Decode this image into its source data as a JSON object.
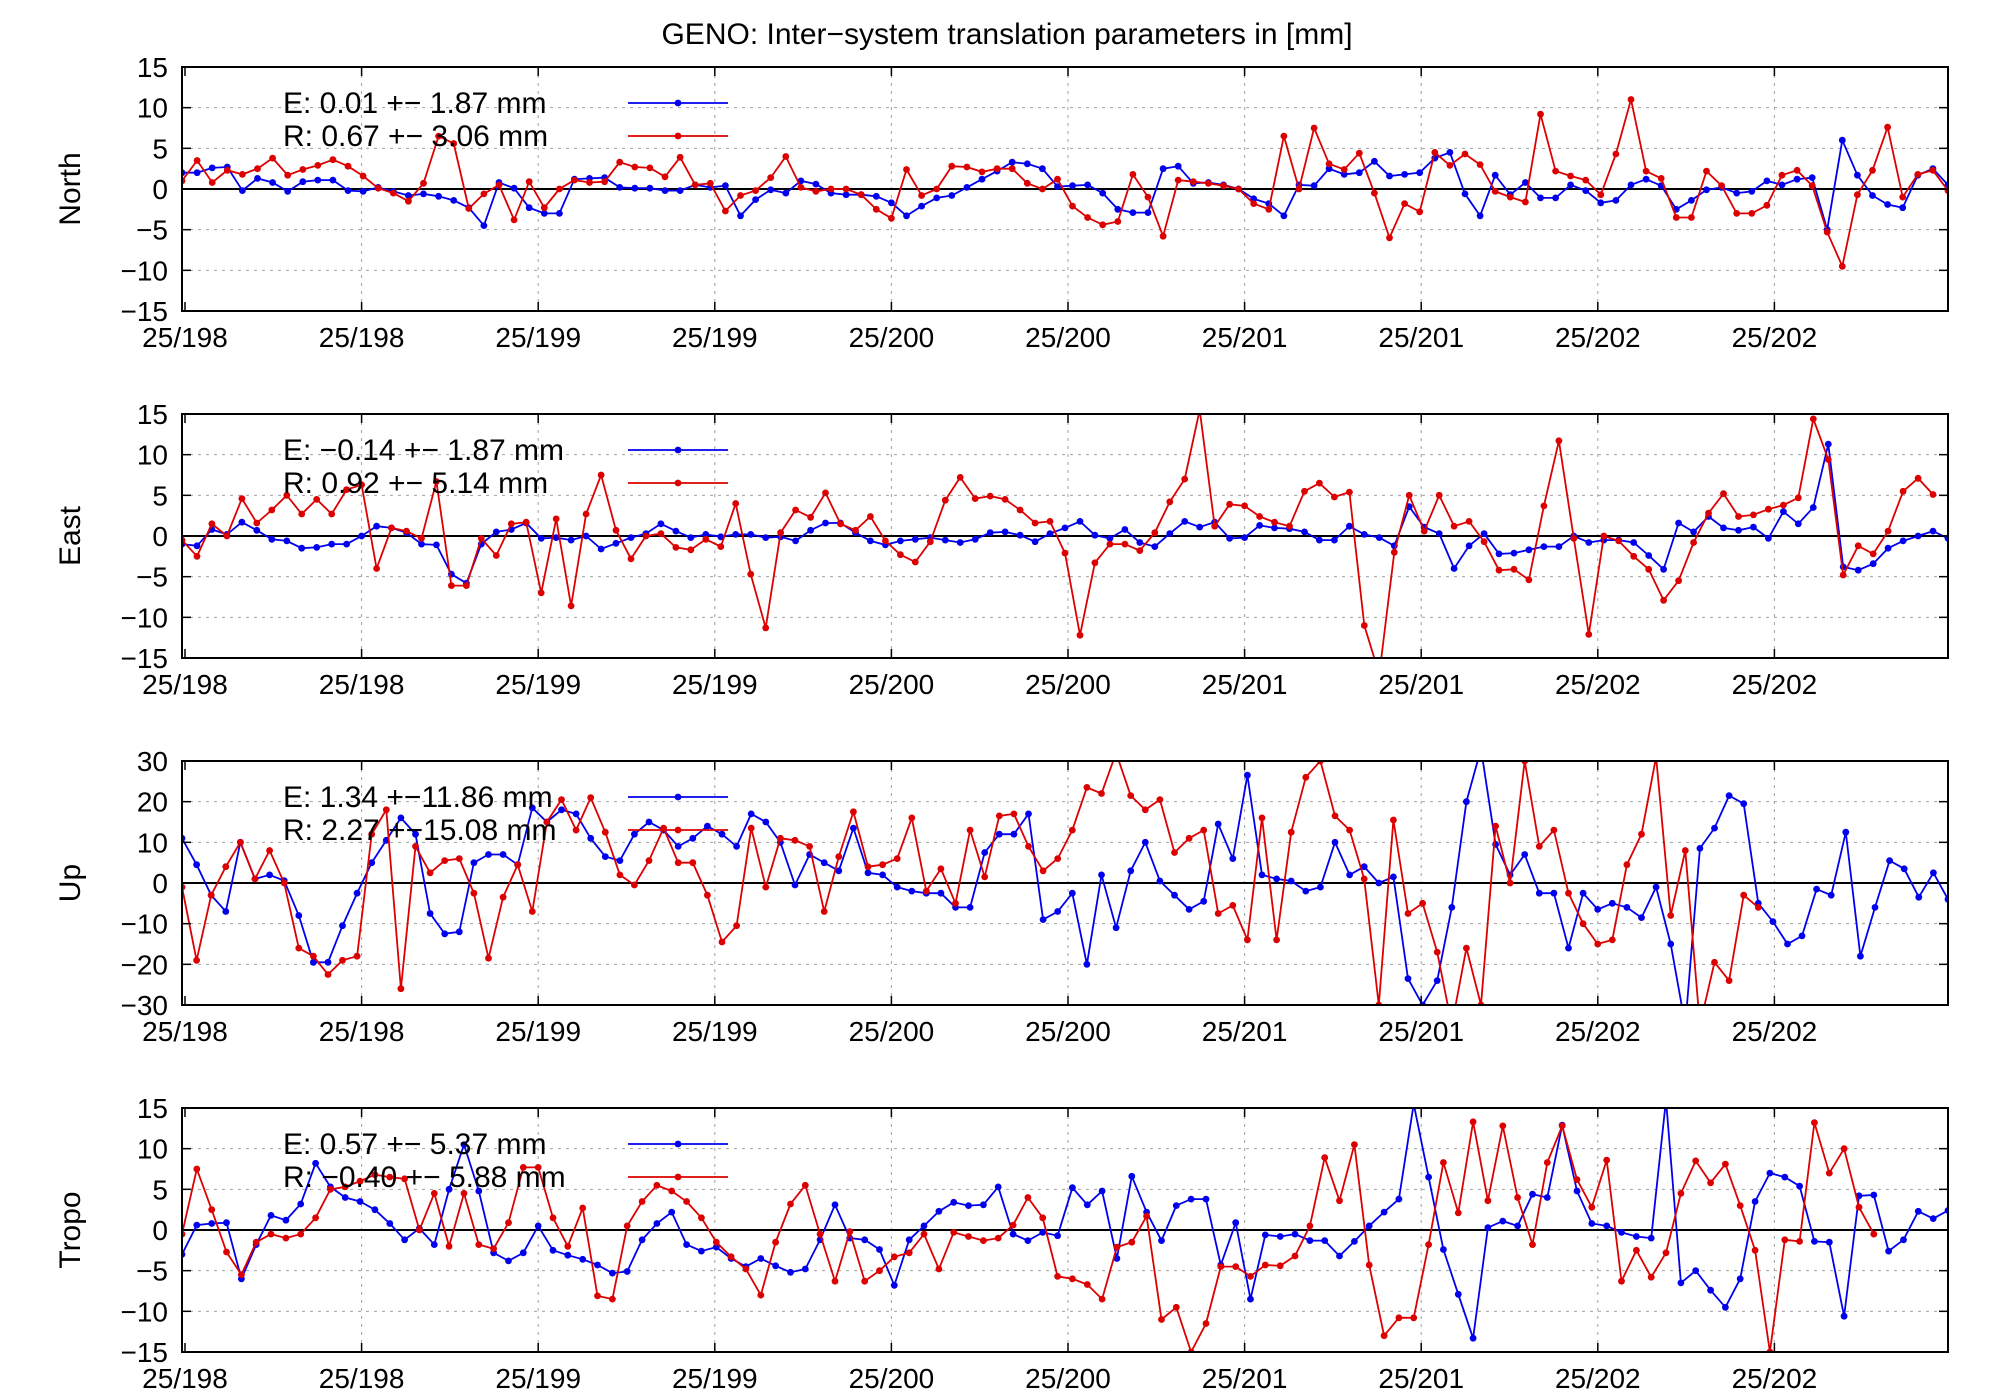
{
  "figure": {
    "title": "GENO: Inter−system translation parameters in [mm]"
  },
  "colors": {
    "E": "#0000ee",
    "R": "#dd0000",
    "grid": "#a0a0a0",
    "axis": "#000000"
  },
  "chart_data": [
    {
      "type": "line",
      "ylabel": "North",
      "ylim": [
        -15,
        15
      ],
      "yticks": [
        "15",
        "10",
        "5",
        "0",
        "−5",
        "−10",
        "−15"
      ],
      "xticks": [
        "25/198",
        "25/198",
        "25/199",
        "25/199",
        "25/200",
        "25/200",
        "25/201",
        "25/201",
        "25/202",
        "25/202"
      ],
      "grid": true,
      "legend": [
        "E:   0.01 +− 1.87 mm",
        "R:   0.67 +− 3.06 mm"
      ],
      "series": [
        {
          "name": "E",
          "values": [
            2,
            2,
            2.6,
            2.7,
            -0.2,
            1.3,
            0.8,
            -0.3,
            0.9,
            1.1,
            1.1,
            -0.2,
            -0.3,
            0.2,
            -0.3,
            -0.8,
            -0.6,
            -0.9,
            -1.4,
            -2.3,
            -4.5,
            0.8,
            0.1,
            -2.3,
            -3,
            -3,
            1.2,
            1.3,
            1.4,
            0.2,
            0.1,
            0.1,
            -0.2,
            -0.2,
            0.5,
            0.2,
            0.4,
            -3.3,
            -1.3,
            -0.1,
            -0.5,
            1,
            0.6,
            -0.5,
            -0.7,
            -0.7,
            -0.9,
            -1.7,
            -3.3,
            -2.1,
            -1.1,
            -0.8,
            0.2,
            1.2,
            2.2,
            3.3,
            3.1,
            2.5,
            0.3,
            0.4,
            0.5,
            -0.5,
            -2.5,
            -2.9,
            -2.9,
            2.5,
            2.8,
            0.7,
            0.8,
            0.5,
            0,
            -1.2,
            -1.8,
            -3.3,
            0.5,
            0.4,
            2.5,
            1.8,
            2,
            3.4,
            1.6,
            1.8,
            2,
            3.8,
            4.5,
            -0.6,
            -3.3,
            1.7,
            -0.7,
            0.8,
            -1.1,
            -1.1,
            0.5,
            -0.2,
            -1.7,
            -1.4,
            0.5,
            1.2,
            0.4,
            -2.5,
            -1.4,
            -0.1,
            0.2,
            -0.5,
            -0.3,
            1,
            0.5,
            1.2,
            1.4,
            -5,
            6,
            1.7,
            -0.8,
            -1.9,
            -2.3,
            1.7,
            2.5,
            0.5
          ]
        },
        {
          "name": "R",
          "values": [
            1,
            3.5,
            0.8,
            2.3,
            1.8,
            2.5,
            3.8,
            1.7,
            2.4,
            2.9,
            3.6,
            2.8,
            1.6,
            0.1,
            -0.5,
            -1.5,
            0.7,
            6.5,
            5.6,
            -2.4,
            -0.6,
            0.5,
            -3.8,
            0.9,
            -2.3,
            0,
            1.1,
            0.8,
            0.9,
            3.3,
            2.7,
            2.6,
            1.5,
            3.9,
            0.5,
            0.7,
            -2.7,
            -0.8,
            -0.2,
            1.4,
            4,
            0.2,
            -0.3,
            0,
            0,
            -0.7,
            -2.5,
            -3.6,
            2.4,
            -0.8,
            0,
            2.8,
            2.7,
            2.1,
            2.5,
            2.5,
            0.7,
            0,
            1.2,
            -2.1,
            -3.5,
            -4.4,
            -4,
            1.8,
            -1,
            -5.8,
            1.1,
            0.9,
            0.7,
            0.4,
            0,
            -1.8,
            -2.5,
            6.5,
            0,
            7.5,
            3.1,
            2.4,
            4.4,
            -0.5,
            -6,
            -1.8,
            -2.8,
            4.5,
            2.9,
            4.3,
            3,
            -0.3,
            -1,
            -1.6,
            9.2,
            2.2,
            1.6,
            1.1,
            -0.7,
            4.3,
            11,
            2.2,
            1.3,
            -3.5,
            -3.5,
            2.2,
            0.4,
            -3,
            -3,
            -2,
            1.7,
            2.3,
            0.4,
            -5.3,
            -9.5,
            -0.7,
            2.3,
            7.6,
            -1,
            1.8,
            2.3,
            -0.2
          ]
        }
      ]
    },
    {
      "type": "line",
      "ylabel": "East",
      "ylim": [
        -15,
        15
      ],
      "yticks": [
        "15",
        "10",
        "5",
        "0",
        "−5",
        "−10",
        "−15"
      ],
      "xticks": [
        "25/198",
        "25/198",
        "25/199",
        "25/199",
        "25/200",
        "25/200",
        "25/201",
        "25/201",
        "25/202",
        "25/202"
      ],
      "grid": true,
      "legend": [
        "E:  −0.14 +− 1.87 mm",
        "R:   0.92 +− 5.14 mm"
      ],
      "series": [
        {
          "name": "E",
          "values": [
            -1,
            -1.2,
            0.8,
            0.2,
            1.7,
            0.7,
            -0.4,
            -0.6,
            -1.5,
            -1.4,
            -1,
            -1,
            0,
            1.2,
            1,
            0.4,
            -1,
            -1.1,
            -4.7,
            -5.8,
            -1,
            0.5,
            0.8,
            1.6,
            -0.3,
            -0.2,
            -0.5,
            0,
            -1.6,
            -0.9,
            -0.2,
            0.3,
            1.5,
            0.6,
            -0.2,
            0.2,
            -0.1,
            0.2,
            0.2,
            -0.2,
            -0.1,
            -0.6,
            0.7,
            1.6,
            1.6,
            0.4,
            -0.6,
            -1.1,
            -0.6,
            -0.4,
            -0.2,
            -0.5,
            -0.8,
            -0.4,
            0.4,
            0.5,
            0.1,
            -0.7,
            0.3,
            1,
            1.8,
            0.1,
            -0.3,
            0.8,
            -0.8,
            -1.3,
            0.3,
            1.8,
            1.1,
            1.7,
            -0.3,
            -0.2,
            1.3,
            1,
            0.9,
            0.5,
            -0.5,
            -0.5,
            1.2,
            0.2,
            -0.2,
            -1.2,
            3.6,
            1.1,
            0.3,
            -4,
            -1.2,
            0.3,
            -2.2,
            -2.1,
            -1.7,
            -1.3,
            -1.3,
            0,
            -0.8,
            -0.5,
            -0.5,
            -0.8,
            -2.4,
            -4.1,
            1.6,
            0.5,
            2.4,
            1,
            0.7,
            1.1,
            -0.3,
            3,
            1.5,
            3.5,
            11.3,
            -3.8,
            -4.2,
            -3.4,
            -1.5,
            -0.6,
            0,
            0.6,
            -0.3
          ]
        },
        {
          "name": "R",
          "values": [
            -0.5,
            -2.5,
            1.5,
            0,
            4.6,
            1.6,
            3.2,
            5,
            2.7,
            4.5,
            2.7,
            5.7,
            6.3,
            -4,
            1,
            0.6,
            -0.3,
            6.7,
            -6.1,
            -6.1,
            -0.3,
            -2.4,
            1.5,
            1.7,
            -7,
            2.1,
            -8.6,
            2.7,
            7.5,
            0.7,
            -2.8,
            0,
            0.3,
            -1.4,
            -1.7,
            -0.4,
            -1.3,
            4,
            -4.7,
            -11.3,
            0.4,
            3.2,
            2.3,
            5.3,
            1.5,
            0.7,
            2.4,
            -0.6,
            -2.3,
            -3.2,
            -0.7,
            4.4,
            7.2,
            4.6,
            4.9,
            4.5,
            3.2,
            1.6,
            1.8,
            -2.1,
            -12.2,
            -3.3,
            -1,
            -1,
            -1.8,
            0.4,
            4.2,
            7,
            15.5,
            1.2,
            3.9,
            3.7,
            2.4,
            1.7,
            1.2,
            5.5,
            6.5,
            4.8,
            5.4,
            -11,
            -17,
            -2,
            5,
            0.6,
            5,
            1.2,
            1.8,
            -0.7,
            -4.2,
            -4.1,
            -5.4,
            3.7,
            11.7,
            -0.3,
            -12.1,
            0,
            -0.6,
            -2.5,
            -4.1,
            -7.9,
            -5.5,
            -0.8,
            2.8,
            5.2,
            2.4,
            2.6,
            3.3,
            3.8,
            4.7,
            14.4,
            9.4,
            -4.8,
            -1.2,
            -2.2,
            0.6,
            5.5,
            7.1,
            5.1
          ]
        }
      ]
    },
    {
      "type": "line",
      "ylabel": "Up",
      "ylim": [
        -30,
        30
      ],
      "yticks": [
        "30",
        "20",
        "10",
        "0",
        "−10",
        "−20",
        "−30"
      ],
      "xticks": [
        "25/198",
        "25/198",
        "25/199",
        "25/199",
        "25/200",
        "25/200",
        "25/201",
        "25/201",
        "25/202",
        "25/202"
      ],
      "grid": true,
      "legend": [
        "E:   1.34 +−11.86 mm",
        "R:   2.27 +−15.08 mm"
      ],
      "series": [
        {
          "name": "E",
          "values": [
            11,
            4.5,
            -3,
            -7,
            10,
            1,
            2,
            0.6,
            -8,
            -19.5,
            -19.5,
            -10.5,
            -2.5,
            5,
            10.5,
            16,
            12,
            -7.5,
            -12.5,
            -12,
            5,
            7,
            7,
            4.5,
            18.5,
            15,
            18,
            17,
            11,
            6.5,
            5.5,
            12,
            15,
            13,
            9,
            11,
            14,
            12,
            9,
            17,
            15,
            10,
            -0.5,
            7,
            5,
            3,
            13.5,
            2.5,
            2,
            -1,
            -2,
            -2.5,
            -2.5,
            -6,
            -6,
            7.5,
            12,
            12,
            17,
            -9,
            -7,
            -2.5,
            -20,
            2,
            -11,
            3,
            10,
            0.5,
            -3,
            -6.5,
            -4.5,
            14.5,
            6,
            26.5,
            2,
            1,
            0.5,
            -2,
            -1,
            10,
            2,
            4,
            0,
            1.5,
            -23.5,
            -30,
            -24,
            -6,
            20,
            33,
            9.5,
            2,
            7,
            -2.5,
            -2.5,
            -16,
            -2.5,
            -6.5,
            -5,
            -6,
            -8.5,
            -1,
            -15,
            -35,
            8.5,
            13.5,
            21.5,
            19.5,
            -5,
            -9.5,
            -15,
            -13,
            -1.5,
            -3,
            12.5,
            -18,
            -6,
            5.5,
            3.5,
            -3.5,
            2.5,
            -4
          ]
        },
        {
          "name": "R",
          "values": [
            -1,
            -19,
            -3,
            4,
            10,
            1,
            8,
            0,
            -16,
            -18,
            -22.5,
            -19,
            -18,
            12,
            18,
            -26,
            9,
            2.5,
            5.5,
            6,
            -2.5,
            -18.5,
            -3.5,
            4.5,
            -7,
            15,
            20.5,
            13,
            21,
            12.5,
            2,
            -0.5,
            5.5,
            13.5,
            5,
            5,
            -3,
            -14.5,
            -10.5,
            13.5,
            -1,
            11,
            10.5,
            9,
            -7,
            6.5,
            17.5,
            4,
            4.5,
            6,
            16,
            -2,
            3.5,
            -5,
            13,
            1.5,
            16.5,
            17,
            9,
            3,
            6,
            13,
            23.5,
            22,
            32,
            21.5,
            18,
            20.5,
            7.5,
            11,
            13,
            -7.5,
            -5.5,
            -14,
            16,
            -14,
            12.5,
            26,
            30,
            16.5,
            13,
            1,
            -30,
            15.5,
            -7.5,
            -5,
            -17,
            -35,
            -16,
            -30,
            14,
            0,
            30,
            9,
            13,
            -2.5,
            -10,
            -15,
            -14,
            4.5,
            12,
            31,
            -8,
            8,
            -35,
            -19.5,
            -24,
            -3,
            -6
          ]
        }
      ]
    },
    {
      "type": "line",
      "ylabel": "Tropo",
      "ylim": [
        -15,
        15
      ],
      "yticks": [
        "15",
        "10",
        "5",
        "0",
        "−5",
        "−10",
        "−15"
      ],
      "xticks": [
        "25/198",
        "25/198",
        "25/199",
        "25/199",
        "25/200",
        "25/200",
        "25/201",
        "25/201",
        "25/202",
        "25/202"
      ],
      "grid": true,
      "legend": [
        "E:   0.57 +− 5.37 mm",
        "R:  −0.40 +− 5.88 mm"
      ],
      "series": [
        {
          "name": "E",
          "values": [
            -3,
            0.6,
            0.8,
            0.9,
            -6,
            -1.8,
            1.8,
            1.2,
            3.2,
            8.2,
            5.3,
            4,
            3.5,
            2.5,
            0.8,
            -1.2,
            0.2,
            -1.8,
            5,
            10.5,
            4.8,
            -2.8,
            -3.8,
            -2.8,
            0.5,
            -2.5,
            -3.1,
            -3.6,
            -4.3,
            -5.3,
            -5.1,
            -1.2,
            0.8,
            2.2,
            -1.8,
            -2.6,
            -2.1,
            -3.5,
            -4.5,
            -3.5,
            -4.4,
            -5.2,
            -4.8,
            -1.2,
            3.1,
            -1,
            -1.2,
            -2.4,
            -6.8,
            -1.2,
            0.5,
            2.3,
            3.4,
            3,
            3.1,
            5.3,
            -0.5,
            -1.3,
            -0.3,
            -0.7,
            5.2,
            3.1,
            4.8,
            -3.5,
            6.6,
            2.2,
            -1.3,
            3,
            3.8,
            3.8,
            -4.3,
            0.9,
            -8.5,
            -0.6,
            -0.8,
            -0.5,
            -1.3,
            -1.3,
            -3.2,
            -1.4,
            0.5,
            2.2,
            3.8,
            15.5,
            6.5,
            -2.4,
            -7.9,
            -13.3,
            0.3,
            1.1,
            0.5,
            4.4,
            4,
            12.9,
            4.8,
            0.8,
            0.5,
            -0.3,
            -0.8,
            -1,
            16,
            -6.5,
            -5,
            -7.4,
            -9.5,
            -6,
            3.5,
            7,
            6.5,
            5.4,
            -1.4,
            -1.5,
            -10.6,
            4.2,
            4.3,
            -2.6,
            -1.2,
            2.3,
            1.4,
            2.4
          ]
        },
        {
          "name": "R",
          "values": [
            -0.5,
            7.5,
            2.5,
            -2.7,
            -5.5,
            -1.5,
            -0.5,
            -1,
            -0.5,
            1.5,
            5,
            5.3,
            6,
            6.8,
            6.5,
            6.3,
            0,
            4.5,
            -2,
            4.5,
            -1.8,
            -2.3,
            0.9,
            7.7,
            7.7,
            1.5,
            -2,
            2.7,
            -8.1,
            -8.5,
            0.5,
            3.5,
            5.5,
            4.8,
            3.5,
            1.5,
            -1.5,
            -3.3,
            -4.8,
            -8,
            -1.5,
            3.2,
            5.5,
            -0.5,
            -6.3,
            -0.2,
            -6.3,
            -5,
            -3.3,
            -2.8,
            -0.5,
            -4.8,
            -0.3,
            -0.8,
            -1.3,
            -1,
            0.6,
            4,
            1.5,
            -5.7,
            -6,
            -6.7,
            -8.5,
            -2.1,
            -1.5,
            1.7,
            -11,
            -9.5,
            -15,
            -11.5,
            -4.5,
            -4.5,
            -5.7,
            -4.3,
            -4.4,
            -3.2,
            0.5,
            8.9,
            3.6,
            10.5,
            -4.3,
            -13,
            -10.8,
            -10.8,
            -1.8,
            8.3,
            2.1,
            13.3,
            3.6,
            12.8,
            4,
            -1.8,
            8.3,
            12.8,
            6.2,
            2.8,
            8.6,
            -6.3,
            -2.5,
            -5.8,
            -2.8,
            4.5,
            8.5,
            5.8,
            8.1,
            3,
            -2.5,
            -15,
            -1.2,
            -1.4,
            13.2,
            7,
            10,
            2.8,
            -0.5
          ]
        }
      ]
    }
  ]
}
